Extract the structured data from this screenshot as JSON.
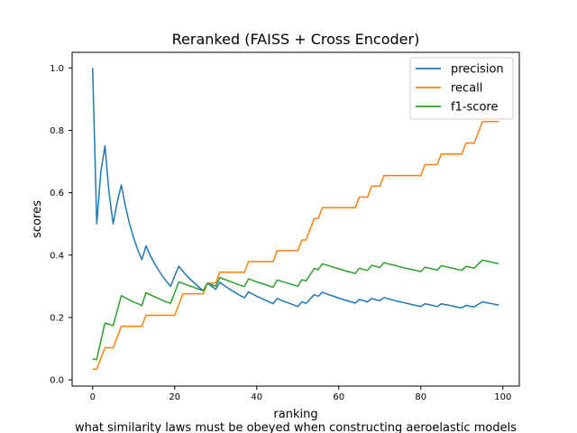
{
  "chart_data": {
    "type": "line",
    "title": "Reranked (FAISS + Cross Encoder)",
    "xlabel": "ranking",
    "ylabel": "scores",
    "caption": "what similarity laws must be obeyed when constructing aeroelastic models",
    "xlim": [
      -5,
      104
    ],
    "ylim": [
      -0.02,
      1.05
    ],
    "xticks": [
      0,
      20,
      40,
      60,
      80,
      100
    ],
    "yticks": [
      0.0,
      0.2,
      0.4,
      0.6,
      0.8,
      1.0
    ],
    "xtick_labels": [
      "0",
      "20",
      "40",
      "60",
      "80",
      "100"
    ],
    "ytick_labels": [
      "0.0",
      "0.2",
      "0.4",
      "0.6",
      "0.8",
      "1.0"
    ],
    "legend_position": "top-right",
    "grid": false,
    "series": [
      {
        "name": "precision",
        "color": "#1f77b4",
        "points": [
          [
            0,
            1.0
          ],
          [
            1,
            0.5
          ],
          [
            2,
            0.667
          ],
          [
            3,
            0.75
          ],
          [
            4,
            0.6
          ],
          [
            5,
            0.5
          ],
          [
            6,
            0.571
          ],
          [
            7,
            0.625
          ],
          [
            8,
            0.556
          ],
          [
            9,
            0.5
          ],
          [
            10,
            0.455
          ],
          [
            11,
            0.417
          ],
          [
            12,
            0.385
          ],
          [
            13,
            0.429
          ],
          [
            14,
            0.4
          ],
          [
            15,
            0.375
          ],
          [
            16,
            0.353
          ],
          [
            17,
            0.333
          ],
          [
            18,
            0.316
          ],
          [
            19,
            0.3
          ],
          [
            20,
            0.333
          ],
          [
            21,
            0.364
          ],
          [
            22,
            0.348
          ],
          [
            23,
            0.333
          ],
          [
            24,
            0.32
          ],
          [
            25,
            0.308
          ],
          [
            26,
            0.296
          ],
          [
            27,
            0.286
          ],
          [
            28,
            0.31
          ],
          [
            29,
            0.3
          ],
          [
            30,
            0.29
          ],
          [
            31,
            0.313
          ],
          [
            32,
            0.303
          ],
          [
            33,
            0.294
          ],
          [
            34,
            0.286
          ],
          [
            35,
            0.278
          ],
          [
            36,
            0.27
          ],
          [
            37,
            0.263
          ],
          [
            38,
            0.282
          ],
          [
            39,
            0.275
          ],
          [
            40,
            0.268
          ],
          [
            41,
            0.262
          ],
          [
            42,
            0.256
          ],
          [
            43,
            0.25
          ],
          [
            44,
            0.244
          ],
          [
            45,
            0.261
          ],
          [
            46,
            0.255
          ],
          [
            47,
            0.25
          ],
          [
            48,
            0.245
          ],
          [
            49,
            0.24
          ],
          [
            50,
            0.235
          ],
          [
            51,
            0.25
          ],
          [
            52,
            0.245
          ],
          [
            53,
            0.259
          ],
          [
            54,
            0.273
          ],
          [
            55,
            0.268
          ],
          [
            56,
            0.281
          ],
          [
            57,
            0.276
          ],
          [
            58,
            0.271
          ],
          [
            59,
            0.267
          ],
          [
            60,
            0.262
          ],
          [
            61,
            0.258
          ],
          [
            62,
            0.254
          ],
          [
            63,
            0.25
          ],
          [
            64,
            0.246
          ],
          [
            65,
            0.258
          ],
          [
            66,
            0.254
          ],
          [
            67,
            0.25
          ],
          [
            68,
            0.261
          ],
          [
            69,
            0.257
          ],
          [
            70,
            0.254
          ],
          [
            71,
            0.264
          ],
          [
            72,
            0.26
          ],
          [
            73,
            0.257
          ],
          [
            74,
            0.253
          ],
          [
            75,
            0.25
          ],
          [
            76,
            0.247
          ],
          [
            77,
            0.244
          ],
          [
            78,
            0.241
          ],
          [
            79,
            0.238
          ],
          [
            80,
            0.235
          ],
          [
            81,
            0.244
          ],
          [
            82,
            0.241
          ],
          [
            83,
            0.238
          ],
          [
            84,
            0.235
          ],
          [
            85,
            0.244
          ],
          [
            86,
            0.241
          ],
          [
            87,
            0.239
          ],
          [
            88,
            0.236
          ],
          [
            89,
            0.233
          ],
          [
            90,
            0.231
          ],
          [
            91,
            0.239
          ],
          [
            92,
            0.236
          ],
          [
            93,
            0.234
          ],
          [
            94,
            0.242
          ],
          [
            95,
            0.25
          ],
          [
            96,
            0.247
          ],
          [
            97,
            0.245
          ],
          [
            98,
            0.242
          ],
          [
            99,
            0.24
          ]
        ]
      },
      {
        "name": "recall",
        "color": "#ff7f0e",
        "points": [
          [
            0,
            0.034
          ],
          [
            1,
            0.034
          ],
          [
            2,
            0.069
          ],
          [
            3,
            0.103
          ],
          [
            5,
            0.103
          ],
          [
            6,
            0.138
          ],
          [
            7,
            0.172
          ],
          [
            12,
            0.172
          ],
          [
            13,
            0.207
          ],
          [
            20,
            0.207
          ],
          [
            21,
            0.241
          ],
          [
            22,
            0.276
          ],
          [
            27,
            0.276
          ],
          [
            28,
            0.31
          ],
          [
            30,
            0.31
          ],
          [
            31,
            0.345
          ],
          [
            37,
            0.345
          ],
          [
            38,
            0.379
          ],
          [
            44,
            0.379
          ],
          [
            45,
            0.414
          ],
          [
            50,
            0.414
          ],
          [
            51,
            0.448
          ],
          [
            52,
            0.448
          ],
          [
            53,
            0.483
          ],
          [
            54,
            0.517
          ],
          [
            55,
            0.517
          ],
          [
            56,
            0.552
          ],
          [
            64,
            0.552
          ],
          [
            65,
            0.586
          ],
          [
            67,
            0.586
          ],
          [
            68,
            0.621
          ],
          [
            70,
            0.621
          ],
          [
            71,
            0.655
          ],
          [
            80,
            0.655
          ],
          [
            81,
            0.69
          ],
          [
            84,
            0.69
          ],
          [
            85,
            0.724
          ],
          [
            90,
            0.724
          ],
          [
            91,
            0.759
          ],
          [
            93,
            0.759
          ],
          [
            94,
            0.793
          ],
          [
            95,
            0.828
          ],
          [
            99,
            0.828
          ]
        ]
      },
      {
        "name": "f1-score",
        "color": "#2ca02c",
        "points": [
          [
            0,
            0.067
          ],
          [
            1,
            0.065
          ],
          [
            2,
            0.125
          ],
          [
            3,
            0.182
          ],
          [
            4,
            0.178
          ],
          [
            5,
            0.174
          ],
          [
            6,
            0.222
          ],
          [
            7,
            0.27
          ],
          [
            8,
            0.263
          ],
          [
            9,
            0.256
          ],
          [
            10,
            0.25
          ],
          [
            11,
            0.244
          ],
          [
            12,
            0.238
          ],
          [
            13,
            0.279
          ],
          [
            14,
            0.273
          ],
          [
            15,
            0.267
          ],
          [
            16,
            0.261
          ],
          [
            17,
            0.255
          ],
          [
            18,
            0.25
          ],
          [
            19,
            0.245
          ],
          [
            20,
            0.28
          ],
          [
            21,
            0.314
          ],
          [
            22,
            0.309
          ],
          [
            23,
            0.304
          ],
          [
            24,
            0.3
          ],
          [
            25,
            0.295
          ],
          [
            26,
            0.29
          ],
          [
            27,
            0.286
          ],
          [
            28,
            0.31
          ],
          [
            29,
            0.305
          ],
          [
            30,
            0.3
          ],
          [
            31,
            0.328
          ],
          [
            32,
            0.323
          ],
          [
            33,
            0.318
          ],
          [
            34,
            0.313
          ],
          [
            35,
            0.308
          ],
          [
            36,
            0.303
          ],
          [
            37,
            0.299
          ],
          [
            38,
            0.324
          ],
          [
            39,
            0.319
          ],
          [
            40,
            0.314
          ],
          [
            41,
            0.31
          ],
          [
            42,
            0.306
          ],
          [
            43,
            0.301
          ],
          [
            44,
            0.297
          ],
          [
            45,
            0.32
          ],
          [
            46,
            0.316
          ],
          [
            47,
            0.312
          ],
          [
            48,
            0.308
          ],
          [
            49,
            0.304
          ],
          [
            50,
            0.3
          ],
          [
            51,
            0.321
          ],
          [
            52,
            0.317
          ],
          [
            53,
            0.337
          ],
          [
            54,
            0.357
          ],
          [
            55,
            0.353
          ],
          [
            56,
            0.372
          ],
          [
            57,
            0.368
          ],
          [
            58,
            0.364
          ],
          [
            59,
            0.36
          ],
          [
            60,
            0.356
          ],
          [
            61,
            0.352
          ],
          [
            62,
            0.348
          ],
          [
            63,
            0.345
          ],
          [
            64,
            0.341
          ],
          [
            65,
            0.358
          ],
          [
            66,
            0.354
          ],
          [
            67,
            0.351
          ],
          [
            68,
            0.367
          ],
          [
            69,
            0.364
          ],
          [
            70,
            0.36
          ],
          [
            71,
            0.376
          ],
          [
            72,
            0.372
          ],
          [
            73,
            0.369
          ],
          [
            74,
            0.366
          ],
          [
            75,
            0.362
          ],
          [
            76,
            0.359
          ],
          [
            77,
            0.356
          ],
          [
            78,
            0.353
          ],
          [
            79,
            0.35
          ],
          [
            80,
            0.347
          ],
          [
            81,
            0.361
          ],
          [
            82,
            0.358
          ],
          [
            83,
            0.355
          ],
          [
            84,
            0.352
          ],
          [
            85,
            0.366
          ],
          [
            86,
            0.363
          ],
          [
            87,
            0.36
          ],
          [
            88,
            0.357
          ],
          [
            89,
            0.354
          ],
          [
            90,
            0.351
          ],
          [
            91,
            0.364
          ],
          [
            92,
            0.361
          ],
          [
            93,
            0.358
          ],
          [
            94,
            0.371
          ],
          [
            95,
            0.384
          ],
          [
            96,
            0.381
          ],
          [
            97,
            0.378
          ],
          [
            98,
            0.375
          ],
          [
            99,
            0.372
          ]
        ]
      }
    ]
  }
}
